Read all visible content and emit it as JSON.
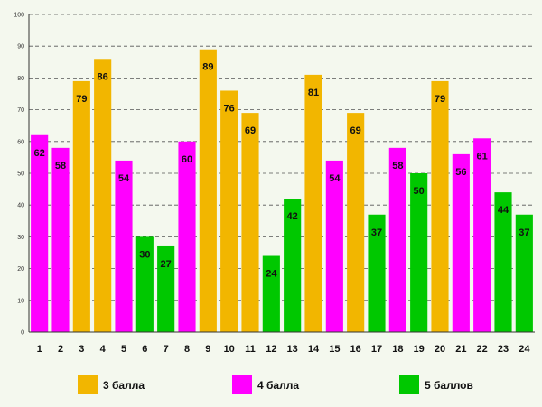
{
  "chart_data": {
    "type": "bar",
    "title": "",
    "xlabel": "",
    "ylabel": "",
    "ylim": [
      0,
      100
    ],
    "ytick_step": 10,
    "grid": true,
    "legend_position": "bottom",
    "categories": [
      "1",
      "2",
      "3",
      "4",
      "5",
      "6",
      "7",
      "8",
      "9",
      "10",
      "11",
      "12",
      "13",
      "14",
      "15",
      "16",
      "17",
      "18",
      "19",
      "20",
      "21",
      "22",
      "23",
      "24"
    ],
    "values": [
      62,
      58,
      79,
      86,
      54,
      30,
      27,
      60,
      89,
      76,
      69,
      24,
      42,
      81,
      54,
      69,
      37,
      58,
      50,
      79,
      56,
      61,
      44,
      37
    ],
    "groups": [
      "4",
      "4",
      "3",
      "3",
      "4",
      "5",
      "5",
      "4",
      "3",
      "3",
      "3",
      "5",
      "5",
      "3",
      "4",
      "3",
      "5",
      "4",
      "5",
      "3",
      "4",
      "4",
      "5",
      "5"
    ],
    "legend": [
      {
        "key": "3",
        "label": "3 балла",
        "color": "#f2b600"
      },
      {
        "key": "4",
        "label": "4 балла",
        "color": "#ff00ff"
      },
      {
        "key": "5",
        "label": "5 баллов",
        "color": "#00c800"
      }
    ]
  }
}
